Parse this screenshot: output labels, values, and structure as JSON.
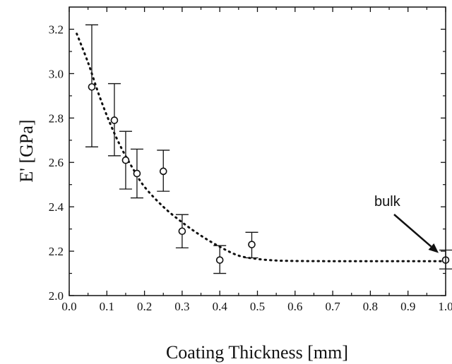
{
  "chart_data": {
    "type": "scatter",
    "xlabel": "Coating Thickness  [mm]",
    "ylabel": "E' [GPa]",
    "xlim": [
      0.0,
      1.0
    ],
    "ylim": [
      2.0,
      3.3
    ],
    "x_ticks": [
      "0.0",
      "0.1",
      "0.2",
      "0.3",
      "0.4",
      "0.5",
      "0.6",
      "0.7",
      "0.8",
      "0.9",
      "1.0"
    ],
    "y_ticks": [
      "2.0",
      "2.2",
      "2.4",
      "2.6",
      "2.8",
      "3.0",
      "3.2"
    ],
    "grid": false,
    "points": [
      {
        "x": 0.06,
        "y": 2.94,
        "err_low": 2.67,
        "err_high": 3.22
      },
      {
        "x": 0.12,
        "y": 2.79,
        "err_low": 2.63,
        "err_high": 2.955
      },
      {
        "x": 0.15,
        "y": 2.61,
        "err_low": 2.48,
        "err_high": 2.74
      },
      {
        "x": 0.18,
        "y": 2.55,
        "err_low": 2.44,
        "err_high": 2.66
      },
      {
        "x": 0.25,
        "y": 2.56,
        "err_low": 2.47,
        "err_high": 2.655
      },
      {
        "x": 0.3,
        "y": 2.29,
        "err_low": 2.215,
        "err_high": 2.365
      },
      {
        "x": 0.4,
        "y": 2.16,
        "err_low": 2.1,
        "err_high": 2.225
      },
      {
        "x": 0.485,
        "y": 2.23,
        "err_low": 2.17,
        "err_high": 2.285
      },
      {
        "x": 1.0,
        "y": 2.16,
        "err_low": 2.12,
        "err_high": 2.205
      }
    ],
    "fit_curve": {
      "style": "dotted",
      "x": [
        0.02,
        0.05,
        0.08,
        0.11,
        0.14,
        0.17,
        0.2,
        0.25,
        0.3,
        0.35,
        0.4,
        0.45,
        0.5,
        0.55,
        0.6,
        0.7,
        0.8,
        0.9,
        1.0
      ],
      "y": [
        3.18,
        3.05,
        2.9,
        2.77,
        2.66,
        2.57,
        2.49,
        2.4,
        2.33,
        2.27,
        2.22,
        2.18,
        2.165,
        2.158,
        2.156,
        2.155,
        2.155,
        2.155,
        2.155
      ]
    },
    "annotation": {
      "text": "bulk",
      "target_x": 1.0,
      "target_y": 2.16
    }
  }
}
